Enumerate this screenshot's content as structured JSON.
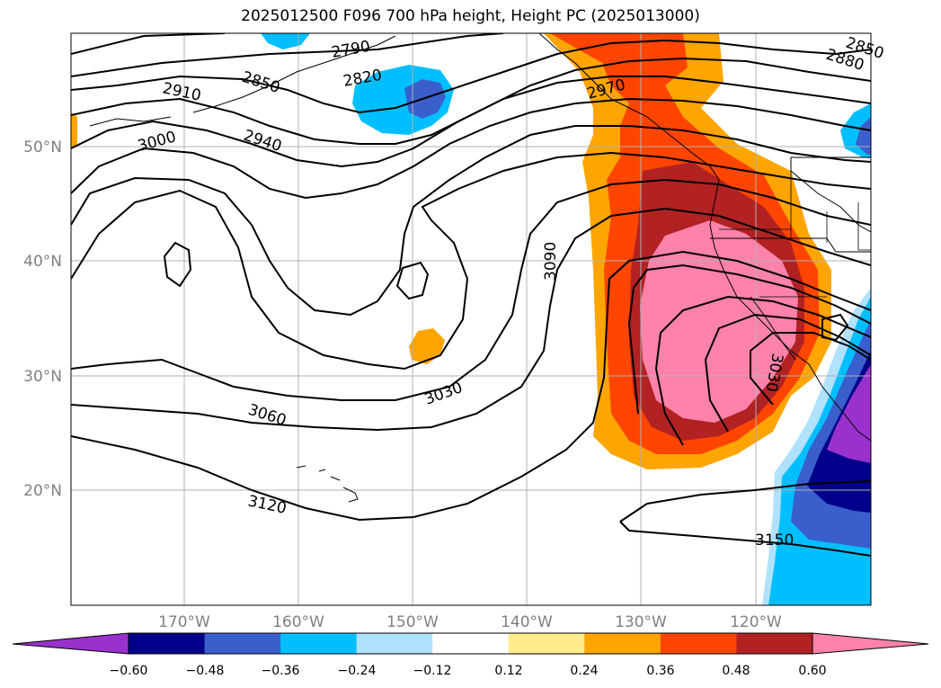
{
  "title": "2025012500 F096 700 hPa height, Height PC (2025013000)",
  "map": {
    "lat_labels": [
      "50°N",
      "40°N",
      "30°N",
      "20°N"
    ],
    "lon_labels": [
      "170°W",
      "160°W",
      "150°W",
      "140°W",
      "130°W",
      "120°W"
    ],
    "contour_labels": [
      "2790",
      "2820",
      "2850",
      "2850",
      "2880",
      "2910",
      "2940",
      "2970",
      "3000",
      "3030",
      "3030",
      "3060",
      "3090",
      "3120",
      "3150"
    ]
  },
  "colorbar": {
    "ticks": [
      "−0.60",
      "−0.48",
      "−0.36",
      "−0.24",
      "−0.12",
      "0.12",
      "0.24",
      "0.36",
      "0.48",
      "0.60"
    ],
    "colors": [
      "#9932cc",
      "#00008b",
      "#3a5fcd",
      "#00bfff",
      "#b0e2ff",
      "#ffffff",
      "#ffec8b",
      "#ffa500",
      "#ff4500",
      "#b22222",
      "#ff82ab",
      "#ff82ab"
    ]
  }
}
